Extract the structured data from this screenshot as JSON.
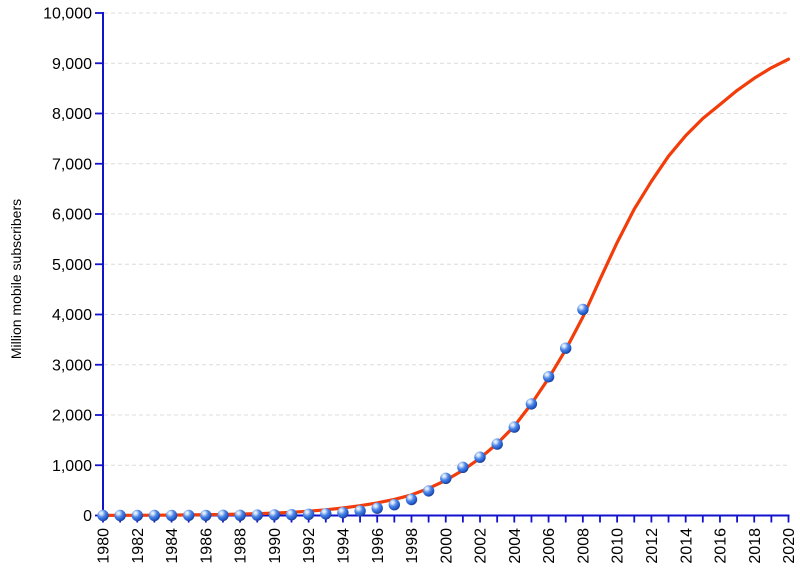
{
  "page": {
    "background": "#ffffff",
    "title": ""
  },
  "colors": {
    "axis": "#1212cc",
    "grid": "#dcdcdc",
    "tick_label": "#000000",
    "curve": "#f23c0a",
    "point_highlight_core": "#f2f8ff",
    "point_highlight": "#cfe2fa",
    "point_mid": "#4f86e6",
    "point_body": "#2861d2",
    "point_dark": "#132f7e"
  },
  "chart_data": {
    "type": "scatter",
    "title": "",
    "xlabel": "",
    "ylabel": "Million mobile subscribers",
    "xlim": [
      1980,
      2020
    ],
    "ylim": [
      0,
      10000
    ],
    "grid": "horizontal dashed gridlines at every 1,000; no vertical gridlines",
    "legend": "none",
    "y_ticks": [
      0,
      1000,
      2000,
      3000,
      4000,
      5000,
      6000,
      7000,
      8000,
      9000,
      10000
    ],
    "y_tick_labels": [
      "0",
      "1,000",
      "2,000",
      "3,000",
      "4,000",
      "5,000",
      "6,000",
      "7,000",
      "8,000",
      "9,000",
      "10,000"
    ],
    "x_minor_tick_step": 1,
    "x_tick_labels": [
      "1980",
      "1982",
      "1984",
      "1986",
      "1988",
      "1990",
      "1992",
      "1994",
      "1996",
      "1998",
      "2000",
      "2002",
      "2004",
      "2006",
      "2008",
      "2010",
      "2012",
      "2014",
      "2016",
      "2018",
      "2020"
    ],
    "x_tick_label_rotation_deg": -90,
    "series": [
      {
        "name": "Observed mobile subscribers (blue spheres)",
        "type": "scatter-points",
        "marker": "glossy blue sphere",
        "x": [
          1980,
          1981,
          1982,
          1983,
          1984,
          1985,
          1986,
          1987,
          1988,
          1989,
          1990,
          1991,
          1992,
          1993,
          1994,
          1995,
          1996,
          1997,
          1998,
          1999,
          2000,
          2001,
          2002,
          2003,
          2004,
          2005,
          2006,
          2007,
          2008
        ],
        "y": [
          0,
          0,
          0,
          0,
          0,
          1,
          1,
          3,
          4,
          7,
          11,
          16,
          23,
          34,
          56,
          91,
          145,
          215,
          318,
          490,
          740,
          960,
          1160,
          1420,
          1760,
          2220,
          2760,
          3330,
          4100
        ]
      },
      {
        "name": "Logistic fit / forecast curve (red line)",
        "type": "line",
        "x": [
          1980,
          1981,
          1982,
          1983,
          1984,
          1985,
          1986,
          1987,
          1988,
          1989,
          1990,
          1991,
          1992,
          1993,
          1994,
          1995,
          1996,
          1997,
          1998,
          1999,
          2000,
          2001,
          2002,
          2003,
          2004,
          2005,
          2006,
          2007,
          2008,
          2009,
          2010,
          2011,
          2012,
          2013,
          2014,
          2015,
          2016,
          2017,
          2018,
          2019,
          2020
        ],
        "y": [
          2,
          3,
          4,
          6,
          8,
          11,
          15,
          20,
          27,
          36,
          48,
          64,
          85,
          113,
          150,
          195,
          250,
          320,
          410,
          540,
          700,
          900,
          1140,
          1430,
          1780,
          2220,
          2730,
          3300,
          3950,
          4700,
          5430,
          6100,
          6650,
          7150,
          7560,
          7900,
          8180,
          8460,
          8700,
          8910,
          9080
        ]
      }
    ]
  }
}
